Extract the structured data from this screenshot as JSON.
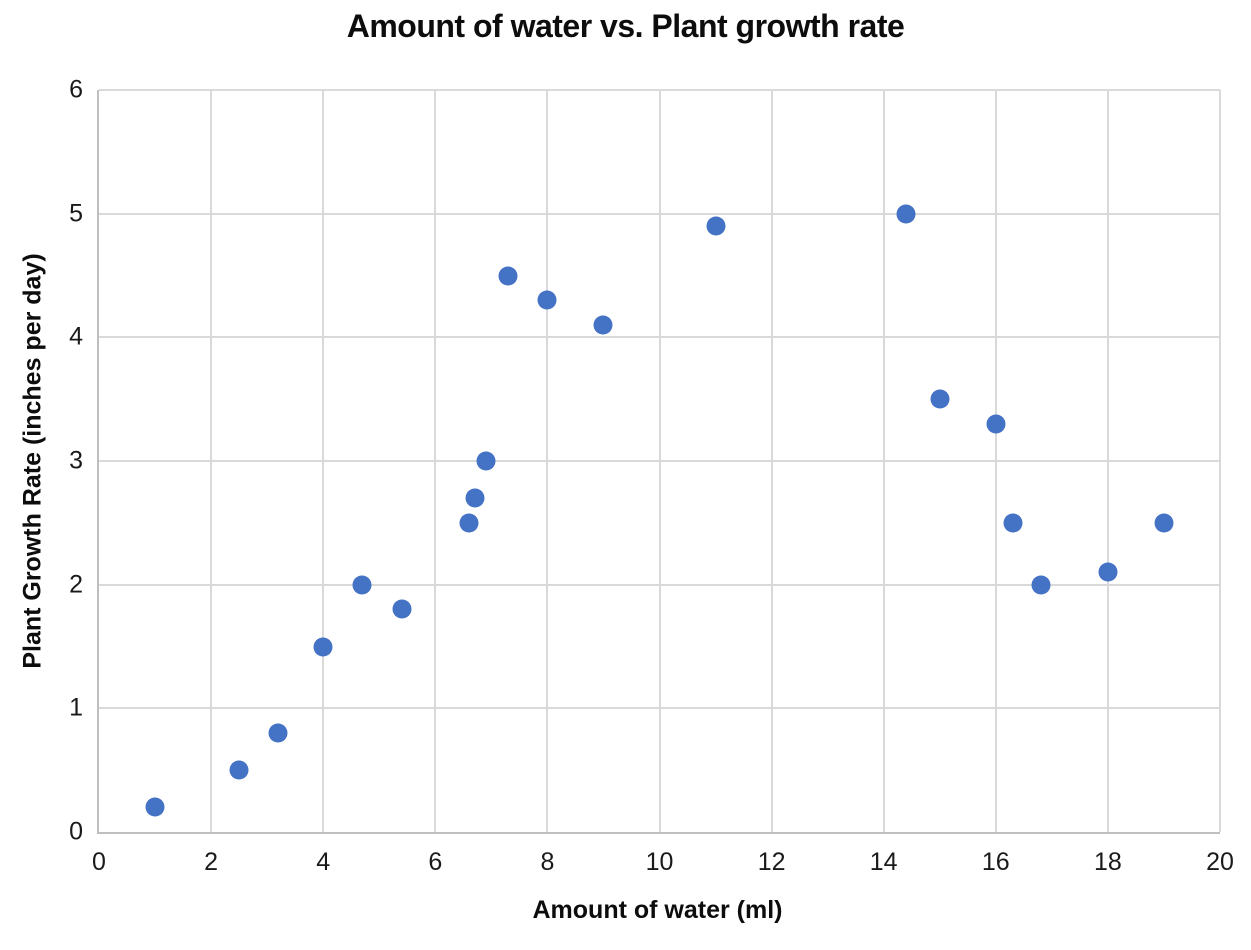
{
  "chart_data": {
    "type": "scatter",
    "title": "Amount of water vs. Plant growth rate",
    "xlabel": "Amount of water (ml)",
    "ylabel": "Plant Growth Rate (inches per day)",
    "xlim": [
      0,
      20
    ],
    "ylim": [
      0,
      6
    ],
    "x_ticks": [
      0,
      2,
      4,
      6,
      8,
      10,
      12,
      14,
      16,
      18,
      20
    ],
    "y_ticks": [
      0,
      1,
      2,
      3,
      4,
      5,
      6
    ],
    "grid": true,
    "legend": false,
    "marker_color": "#4472C4",
    "gridline_color": "#D9D9D9",
    "axis_line_color": "#BFBFBF",
    "points": [
      {
        "x": 1,
        "y": 0.2
      },
      {
        "x": 2.5,
        "y": 0.5
      },
      {
        "x": 3.2,
        "y": 0.8
      },
      {
        "x": 4,
        "y": 1.5
      },
      {
        "x": 4.7,
        "y": 2.0
      },
      {
        "x": 5.4,
        "y": 1.8
      },
      {
        "x": 6.6,
        "y": 2.5
      },
      {
        "x": 6.7,
        "y": 2.7
      },
      {
        "x": 6.9,
        "y": 3.0
      },
      {
        "x": 7.3,
        "y": 4.5
      },
      {
        "x": 8,
        "y": 4.3
      },
      {
        "x": 9,
        "y": 4.1
      },
      {
        "x": 11,
        "y": 4.9
      },
      {
        "x": 14.4,
        "y": 5.0
      },
      {
        "x": 15,
        "y": 3.5
      },
      {
        "x": 16,
        "y": 3.3
      },
      {
        "x": 16.3,
        "y": 2.5
      },
      {
        "x": 16.8,
        "y": 2.0
      },
      {
        "x": 18,
        "y": 2.1
      },
      {
        "x": 19,
        "y": 2.5
      }
    ]
  }
}
